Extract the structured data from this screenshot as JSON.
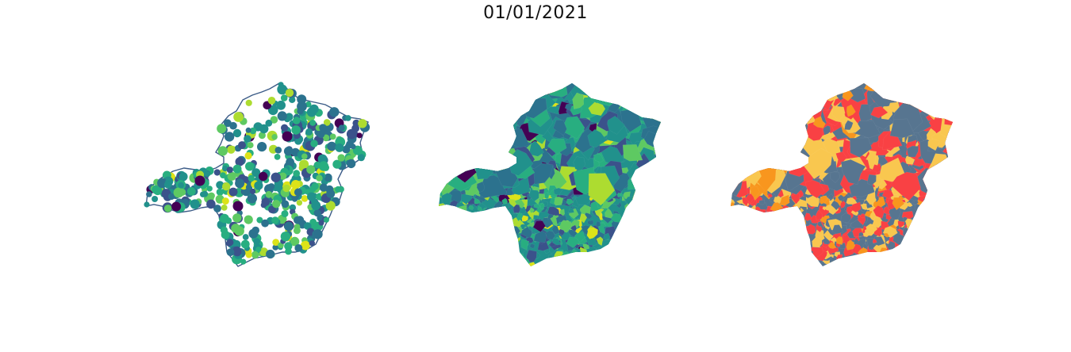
{
  "title": "01/01/2021",
  "panels": [
    {
      "id": "points",
      "kind": "point-map",
      "outline_color": "#3b5b87"
    },
    {
      "id": "choropleth",
      "kind": "choropleth-map"
    },
    {
      "id": "categorical",
      "kind": "categorical-map"
    }
  ],
  "colors": {
    "viridis": [
      "#440154",
      "#3b528b",
      "#2c728e",
      "#21918c",
      "#28ae80",
      "#5ec962",
      "#addc30",
      "#dce319"
    ],
    "categorical": [
      "#f94144",
      "#f9c74f",
      "#577590",
      "#f8961e"
    ],
    "outline": "#3b5b87"
  }
}
